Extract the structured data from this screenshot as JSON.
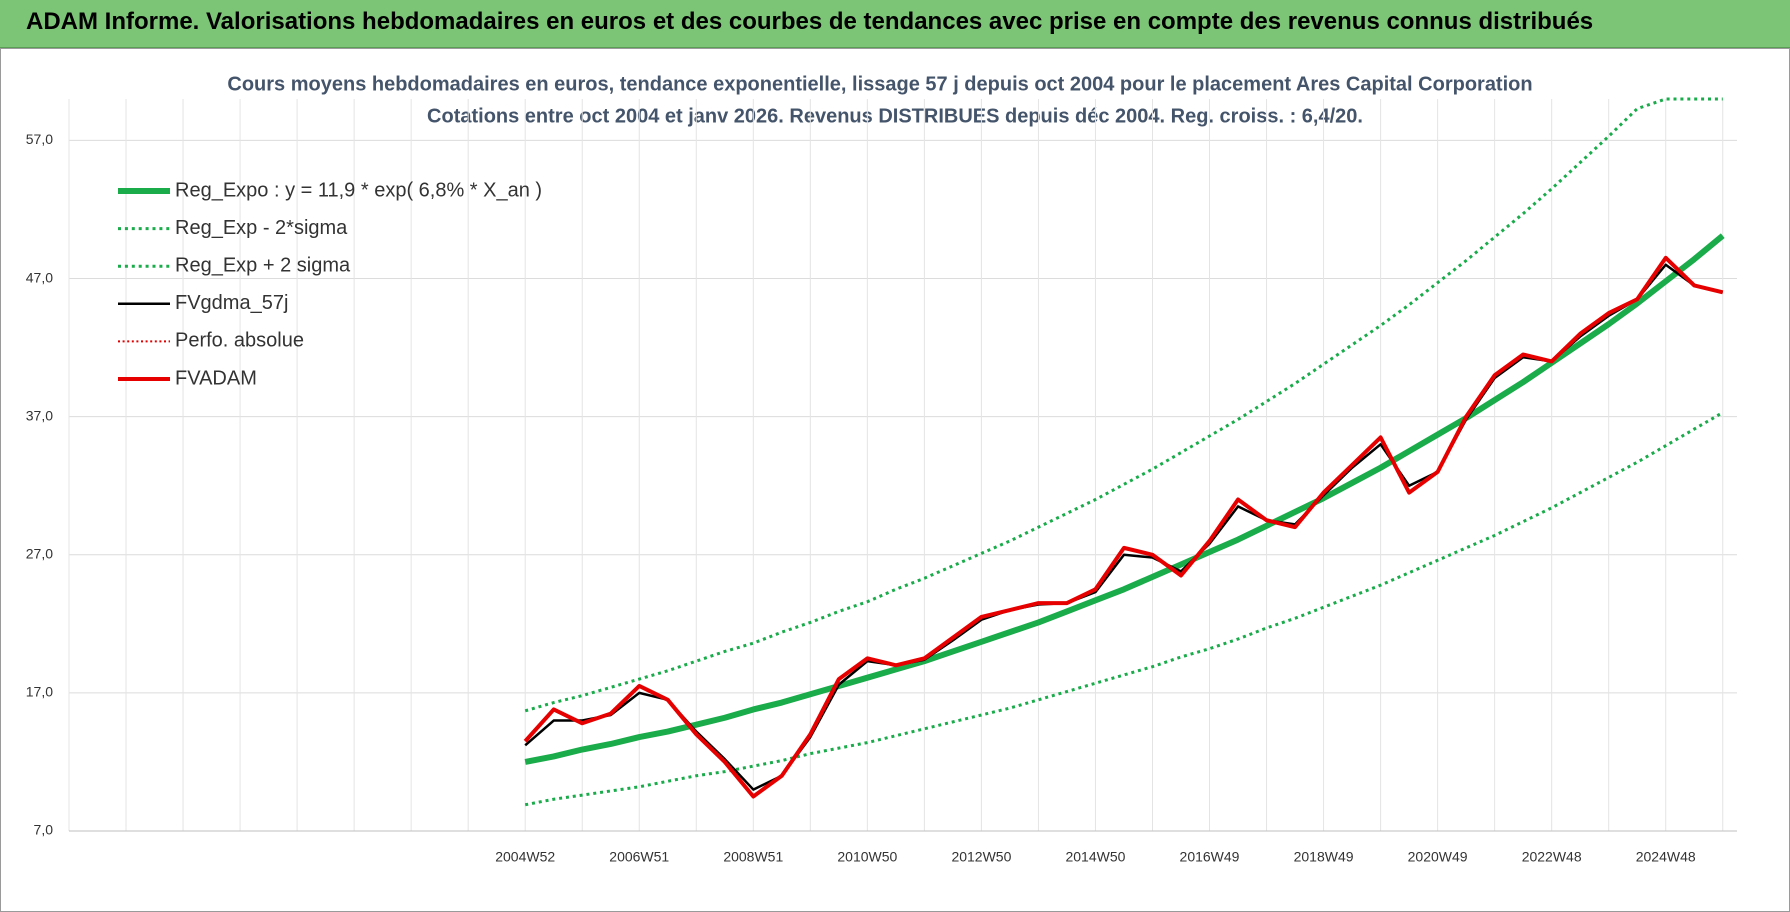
{
  "header": {
    "title": "ADAM Informe. Valorisations hebdomadaires en euros et des courbes de tendances avec prise en compte des revenus connus distribués"
  },
  "chart_data": {
    "type": "line",
    "title": "Cours moyens hebdomadaires en euros, tendance exponentielle, lissage 57 j depuis oct 2004 pour le placement Ares Capital Corporation",
    "subtitle": "Cotations entre oct 2004 et janv 2026. Revenus DISTRIBUES depuis déc 2004. Reg. croiss. : 6,4/20.",
    "categories": [
      null,
      null,
      null,
      null,
      null,
      null,
      null,
      null,
      null,
      null,
      null,
      null,
      null,
      null,
      null,
      null,
      "2004W52",
      null,
      null,
      null,
      "2006W51",
      null,
      null,
      null,
      "2008W51",
      null,
      null,
      null,
      "2010W50",
      null,
      null,
      null,
      "2012W50",
      null,
      null,
      null,
      "2014W50",
      null,
      null,
      null,
      "2016W49",
      null,
      null,
      null,
      "2018W49",
      null,
      null,
      null,
      "2020W49",
      null,
      null,
      null,
      "2022W48",
      null,
      null,
      null,
      "2024W48",
      null,
      null
    ],
    "ylim": [
      7,
      60
    ],
    "yticks": [
      {
        "value": 7,
        "label": "7,0"
      },
      {
        "value": 17,
        "label": "17,0"
      },
      {
        "value": 27,
        "label": "27,0"
      },
      {
        "value": 37,
        "label": "37,0"
      },
      {
        "value": 47,
        "label": "47,0"
      },
      {
        "value": 57,
        "label": "57,0"
      }
    ],
    "grid": true,
    "legend": "upper left",
    "series": [
      {
        "name": "Reg_Expo : y = 11,9 * exp( 6,8% *  X_an )",
        "color": "#1aab4b",
        "style": "solid",
        "width": 6,
        "values": [
          null,
          null,
          null,
          null,
          null,
          null,
          null,
          null,
          null,
          null,
          null,
          null,
          null,
          null,
          null,
          null,
          12.0,
          12.4,
          12.9,
          13.3,
          13.8,
          14.2,
          14.7,
          15.2,
          15.8,
          16.3,
          16.9,
          17.5,
          18.1,
          18.7,
          19.3,
          20.0,
          20.7,
          21.4,
          22.1,
          22.9,
          23.7,
          24.5,
          25.4,
          26.3,
          27.2,
          28.1,
          29.1,
          30.1,
          31.1,
          32.2,
          33.3,
          34.5,
          35.7,
          36.9,
          38.2,
          39.5,
          40.9,
          42.3,
          43.7,
          45.2,
          46.8,
          48.4,
          50.1
        ]
      },
      {
        "name": "Reg_Exp - 2*sigma",
        "color": "#1aab4b",
        "style": "dotted",
        "width": 3,
        "values": [
          null,
          null,
          null,
          null,
          null,
          null,
          null,
          null,
          null,
          null,
          null,
          null,
          null,
          null,
          null,
          null,
          8.9,
          9.3,
          9.6,
          9.9,
          10.2,
          10.6,
          11.0,
          11.3,
          11.7,
          12.1,
          12.6,
          13.0,
          13.4,
          13.9,
          14.4,
          14.9,
          15.4,
          15.9,
          16.5,
          17.1,
          17.7,
          18.3,
          18.9,
          19.6,
          20.2,
          20.9,
          21.7,
          22.4,
          23.2,
          24.0,
          24.8,
          25.7,
          26.6,
          27.5,
          28.4,
          29.4,
          30.4,
          31.5,
          32.6,
          33.7,
          34.9,
          36.1,
          37.3
        ]
      },
      {
        "name": "Reg_Exp + 2 sigma",
        "color": "#1aab4b",
        "style": "dotted",
        "width": 3,
        "values": [
          null,
          null,
          null,
          null,
          null,
          null,
          null,
          null,
          null,
          null,
          null,
          null,
          null,
          null,
          null,
          null,
          15.7,
          16.3,
          16.8,
          17.4,
          18.0,
          18.6,
          19.3,
          20.0,
          20.6,
          21.4,
          22.1,
          22.9,
          23.6,
          24.5,
          25.3,
          26.2,
          27.1,
          28.0,
          29.0,
          30.0,
          31.0,
          32.1,
          33.2,
          34.4,
          35.6,
          36.8,
          38.1,
          39.4,
          40.8,
          42.2,
          43.6,
          45.1,
          46.7,
          48.3,
          50.0,
          51.7,
          53.5,
          55.4,
          57.3,
          59.3,
          60,
          60,
          60
        ]
      },
      {
        "name": "FVgdma_57j",
        "color": "#000000",
        "style": "solid",
        "width": 2.5,
        "values": [
          null,
          null,
          null,
          null,
          null,
          null,
          null,
          null,
          null,
          null,
          null,
          null,
          null,
          null,
          null,
          null,
          13.2,
          15.0,
          15.0,
          15.4,
          17.0,
          16.5,
          14.2,
          12.2,
          10.0,
          11.0,
          13.8,
          17.6,
          19.3,
          19.0,
          19.4,
          20.8,
          22.3,
          23.0,
          23.4,
          23.5,
          24.3,
          27.0,
          26.8,
          25.8,
          27.8,
          30.5,
          29.5,
          29.2,
          31.3,
          33.3,
          35.0,
          32.0,
          33.0,
          36.8,
          39.8,
          41.3,
          41.0,
          42.8,
          44.3,
          45.5,
          48.0,
          46.5,
          46.0
        ]
      },
      {
        "name": "Perfo. absolue",
        "color": "#e00000",
        "style": "dotted",
        "width": 2,
        "values": [
          null,
          null,
          null,
          null,
          null,
          null,
          null,
          null,
          null,
          null,
          null,
          null,
          null,
          null,
          null,
          null,
          null,
          null,
          null,
          null,
          null,
          null,
          null,
          null,
          null,
          null,
          null,
          null,
          null,
          null,
          null,
          null,
          null,
          null,
          null,
          null,
          null,
          null,
          null,
          null,
          null,
          null,
          null,
          null,
          null,
          null,
          null,
          null,
          null,
          null,
          null,
          null,
          null,
          null,
          null,
          null,
          null,
          null,
          null
        ]
      },
      {
        "name": "FVADAM",
        "color": "#e60000",
        "style": "solid",
        "width": 4,
        "values": [
          null,
          null,
          null,
          null,
          null,
          null,
          null,
          null,
          null,
          null,
          null,
          null,
          null,
          null,
          null,
          null,
          13.5,
          15.8,
          14.8,
          15.5,
          17.5,
          16.5,
          14.0,
          12.0,
          9.5,
          11.0,
          14.0,
          18.0,
          19.5,
          19.0,
          19.5,
          21.0,
          22.5,
          23.0,
          23.5,
          23.5,
          24.5,
          27.5,
          27.0,
          25.5,
          28.0,
          31.0,
          29.5,
          29.0,
          31.5,
          33.5,
          35.5,
          31.5,
          33.0,
          37.0,
          40.0,
          41.5,
          41.0,
          43.0,
          44.5,
          45.5,
          48.5,
          46.5,
          46.0
        ]
      }
    ]
  }
}
